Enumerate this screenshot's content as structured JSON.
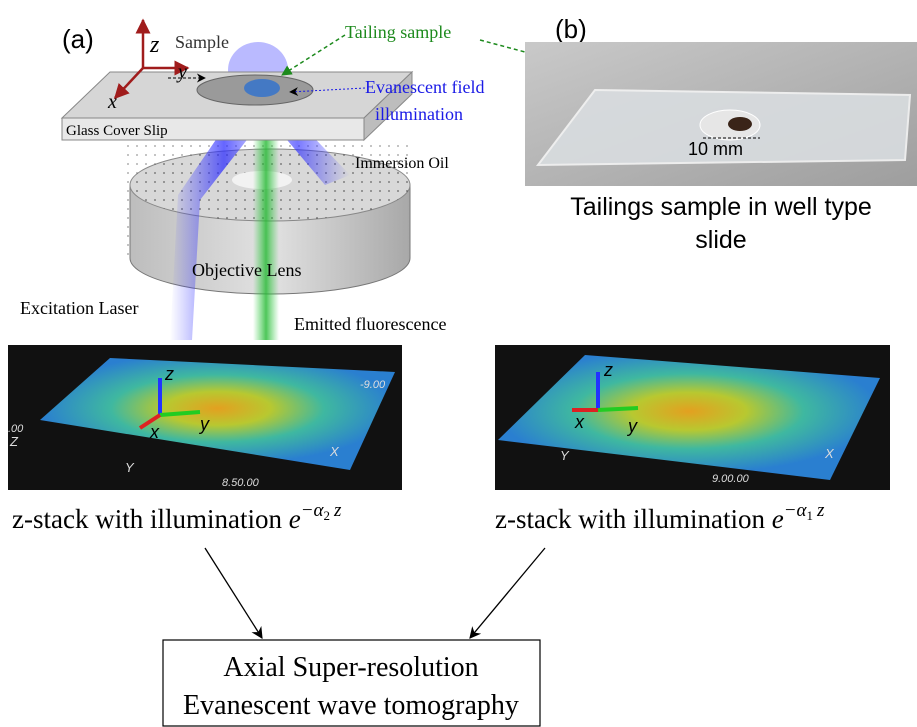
{
  "panel_a": {
    "label": "(a)",
    "axes": {
      "z": "z",
      "y": "y",
      "x": "x"
    },
    "sample": "Sample",
    "tailing_sample": "Tailing sample",
    "evanescent": [
      "Evanescent field",
      "illumination"
    ],
    "glass": "Glass Cover Slip",
    "oil": "Immersion Oil",
    "objective": "Objective Lens",
    "laser": "Excitation Laser",
    "emitted": "Emitted fluorescence"
  },
  "panel_b": {
    "label": "(b)",
    "scale": "10 mm",
    "caption": [
      "Tailings sample in well type",
      "slide"
    ]
  },
  "plots": [
    {
      "axes": {
        "z": "z",
        "x": "x",
        "y": "y"
      },
      "box_labels": {
        "left_top": ".00",
        "left": "Z",
        "bottom": "Y",
        "right": "X",
        "top_right": "-9.00",
        "bottom_right": "8.50.00"
      },
      "caption": {
        "text": "z-stack with illumination",
        "base": "e",
        "exponent": "−α",
        "subscript": "2",
        "variable": "z"
      }
    },
    {
      "axes": {
        "z": "z",
        "x": "x",
        "y": "y"
      },
      "box_labels": {
        "bottom": "Y",
        "right": "X",
        "bottom_right": "9.00.00"
      },
      "caption": {
        "text": "z-stack with illumination",
        "base": "e",
        "exponent": "−α",
        "subscript": "1",
        "variable": "z"
      }
    }
  ],
  "output": [
    "Axial Super-resolution",
    "Evanescent wave tomography"
  ]
}
